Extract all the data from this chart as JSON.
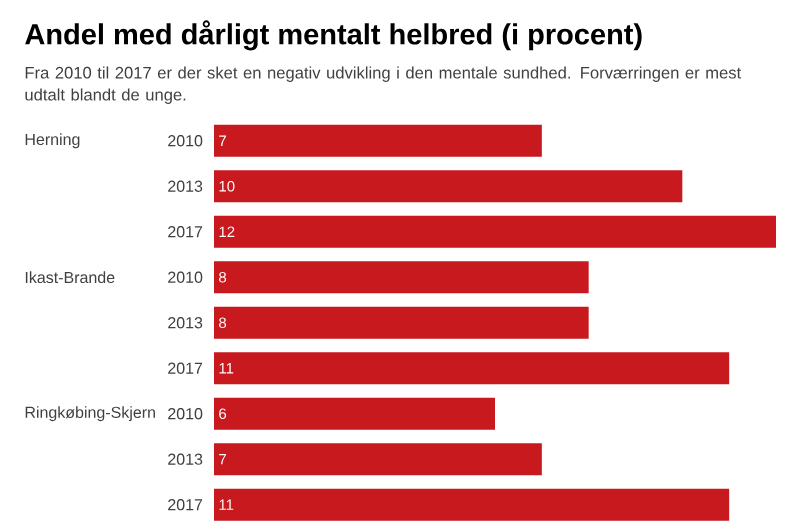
{
  "chart_data": {
    "type": "bar",
    "orientation": "horizontal",
    "title": "Andel med dårligt mentalt helbred (i procent)",
    "subtitle": "Fra 2010 til 2017 er der sket en negativ udvikling i den mentale sundhed. Forværringen er mest udtalt blandt de unge.",
    "categories": [
      "2010",
      "2013",
      "2017",
      "2010",
      "2013",
      "2017",
      "2010",
      "2013",
      "2017"
    ],
    "values": [
      7,
      10,
      12,
      8,
      8,
      11,
      6,
      7,
      11
    ],
    "color": "#c8191f",
    "data_labels": true,
    "annotations": [
      "Herning",
      "Ikast-Brande",
      "Ringkøbing-Skjern"
    ]
  }
}
